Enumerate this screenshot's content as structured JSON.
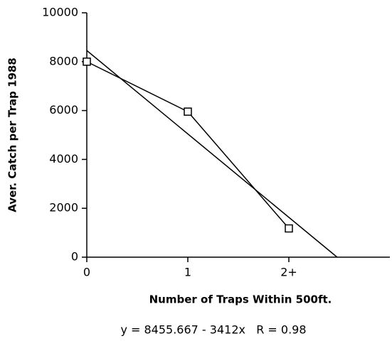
{
  "chart_data": {
    "type": "line",
    "ylabel": "Aver. Catch per Trap 1988",
    "xlabel": "Number of Traps Within 500ft.",
    "annotation": "y = 8455.667 - 3412x   R = 0.98",
    "series": [
      {
        "color": "#000000",
        "marker": "square",
        "x": [
          0,
          1,
          2
        ],
        "values": [
          8000,
          5955,
          1176
        ]
      },
      {
        "color": "#000000",
        "x": [
          0,
          2.478
        ],
        "values": [
          8455.667,
          0
        ]
      }
    ],
    "xlim": [
      0,
      3
    ],
    "ylim": [
      0,
      10000
    ],
    "xticks": [
      0,
      1,
      {
        "value": 2,
        "label": "2+"
      }
    ],
    "yticks": [
      0,
      2000,
      4000,
      6000,
      8000,
      10000
    ],
    "grid": false
  }
}
